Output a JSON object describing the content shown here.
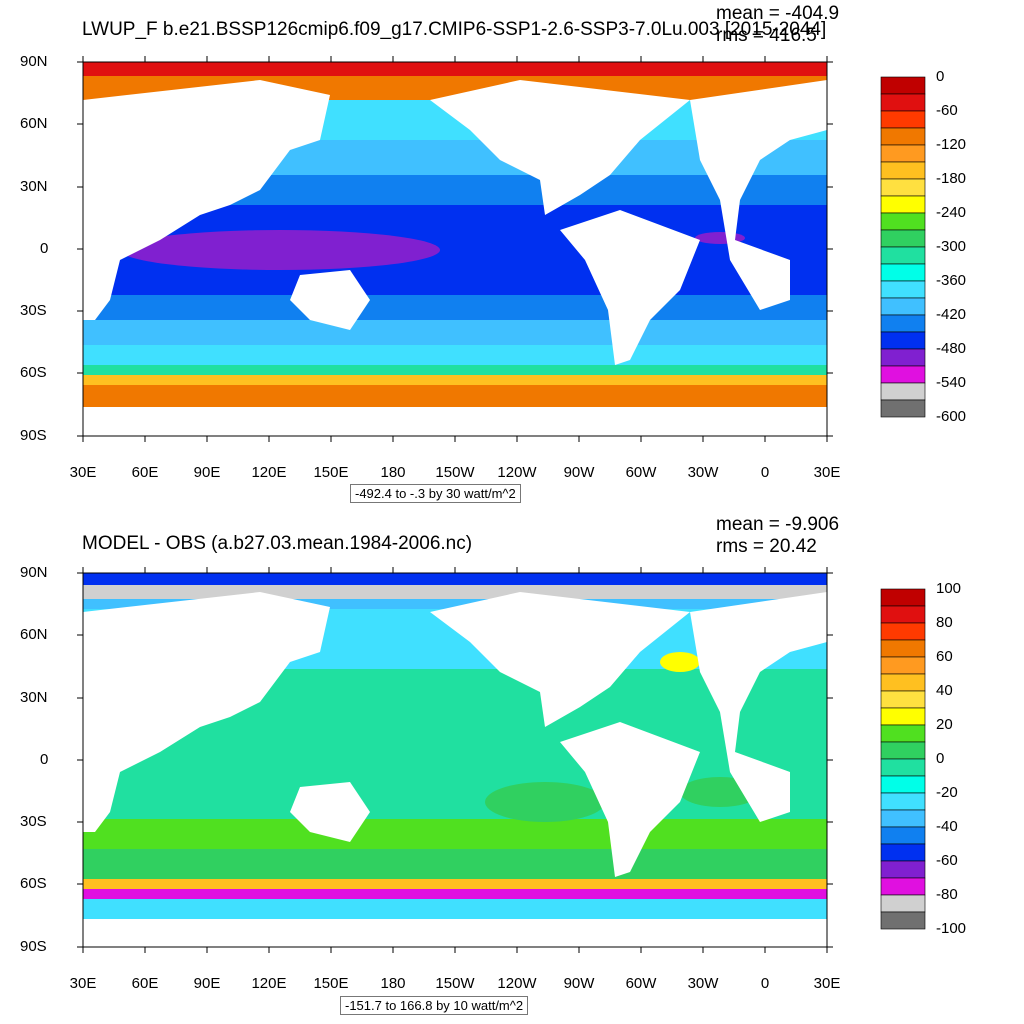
{
  "panels": [
    {
      "title": "LWUP_F b.e21.BSSP126cmip6.f09_g17.CMIP6-SSP1-2.6-SSP3-7.0Lu.003 [2015-2044]",
      "mean_text": "mean = -404.9",
      "rms_text": "rms = 416.5",
      "range_text": "-492.4 to -.3 by 30 watt/m^2",
      "lat_labels": [
        "90N",
        "60N",
        "30N",
        "0",
        "30S",
        "60S",
        "90S"
      ],
      "lon_labels": [
        "30E",
        "60E",
        "90E",
        "120E",
        "150E",
        "180",
        "150W",
        "120W",
        "90W",
        "60W",
        "30W",
        "0",
        "30E"
      ],
      "colorbar": {
        "labels": [
          "0",
          "-60",
          "-120",
          "-180",
          "-240",
          "-300",
          "-360",
          "-420",
          "-480",
          "-540",
          "-600"
        ],
        "colors": [
          "#c00000",
          "#e01010",
          "#ff3a00",
          "#f07800",
          "#ff9a20",
          "#ffc020",
          "#ffe040",
          "#ffff00",
          "#50e020",
          "#30d060",
          "#20e0a0",
          "#00ffe8",
          "#40e0ff",
          "#40c0ff",
          "#1080f0",
          "#0030f0",
          "#8020d0",
          "#e010e0",
          "#d0d0d0",
          "#707070"
        ]
      }
    },
    {
      "title": "MODEL - OBS (a.b27.03.mean.1984-2006.nc)",
      "mean_text": "mean = -9.906",
      "rms_text": "rms = 20.42",
      "range_text": "-151.7 to 166.8 by 10 watt/m^2",
      "lat_labels": [
        "90N",
        "60N",
        "30N",
        "0",
        "30S",
        "60S",
        "90S"
      ],
      "lon_labels": [
        "30E",
        "60E",
        "90E",
        "120E",
        "150E",
        "180",
        "150W",
        "120W",
        "90W",
        "60W",
        "30W",
        "0",
        "30E"
      ],
      "colorbar": {
        "labels": [
          "100",
          "80",
          "60",
          "40",
          "20",
          "0",
          "-20",
          "-40",
          "-60",
          "-80",
          "-100"
        ],
        "colors": [
          "#c00000",
          "#e01010",
          "#ff3a00",
          "#f07800",
          "#ff9a20",
          "#ffc020",
          "#ffe040",
          "#ffff00",
          "#50e020",
          "#30d060",
          "#20e0a0",
          "#00ffe8",
          "#40e0ff",
          "#40c0ff",
          "#1080f0",
          "#0030f0",
          "#8020d0",
          "#e010e0",
          "#d0d0d0",
          "#707070"
        ]
      }
    }
  ]
}
